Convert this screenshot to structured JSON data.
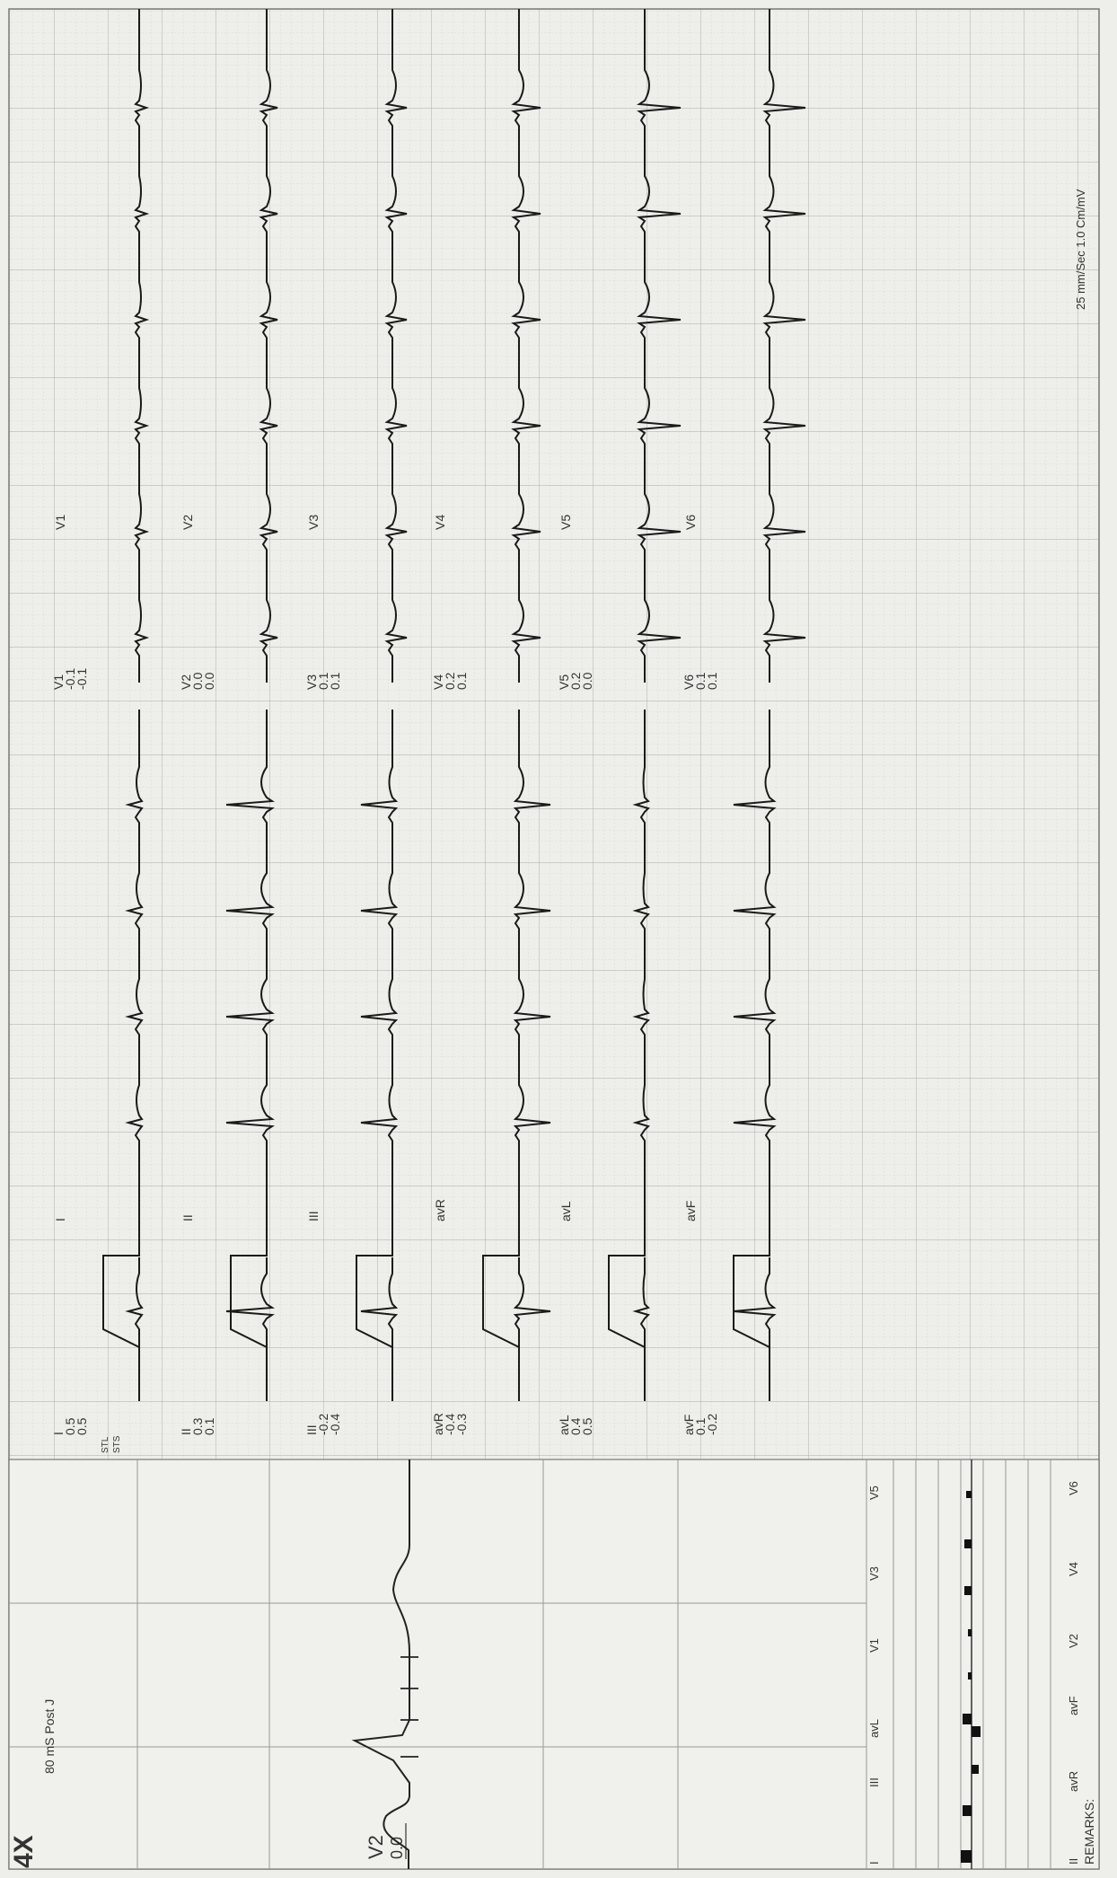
{
  "header": {
    "scale": "25 mm/Sec  1.0 Cm/mV"
  },
  "panel": {
    "zoom": "4X",
    "title": "80 mS Post J",
    "lead": "V2",
    "value": "0.0"
  },
  "st_row_labels": {
    "stl": "STL",
    "sts": "STS"
  },
  "limb_leads": [
    {
      "name": "I",
      "values": [
        "0.5",
        "0.5"
      ]
    },
    {
      "name": "II",
      "values": [
        "0.3",
        "0.1"
      ]
    },
    {
      "name": "III",
      "values": [
        "-0.2",
        "-0.4"
      ]
    },
    {
      "name": "avR",
      "values": [
        "-0.4",
        "-0.3"
      ]
    },
    {
      "name": "avL",
      "values": [
        "0.4",
        "0.5"
      ]
    },
    {
      "name": "avF",
      "values": [
        "0.1",
        "-0.2"
      ]
    }
  ],
  "chest_leads": [
    {
      "name": "V1",
      "values": [
        "-0.1",
        "-0.1"
      ]
    },
    {
      "name": "V2",
      "values": [
        "0.0",
        "0.0"
      ]
    },
    {
      "name": "V3",
      "values": [
        "0.1",
        "0.1"
      ]
    },
    {
      "name": "V4",
      "values": [
        "0.2",
        "0.1"
      ]
    },
    {
      "name": "V5",
      "values": [
        "0.2",
        "0.0"
      ]
    },
    {
      "name": "V6",
      "values": [
        "0.1",
        "0.1"
      ]
    }
  ],
  "rhythm_labels": [
    "I",
    "II",
    "III",
    "avR",
    "avL",
    "avF"
  ],
  "chest_rhythm_labels": [
    "V1",
    "V2",
    "V3",
    "V4",
    "V5",
    "V6"
  ],
  "bar_chart": {
    "top_labels": [
      "I",
      "III",
      "avL",
      "V1",
      "V3",
      "V5"
    ],
    "bottom_labels": [
      "II",
      "avR",
      "avF",
      "V2",
      "V4",
      "V6"
    ]
  },
  "remarks": "REMARKS:"
}
